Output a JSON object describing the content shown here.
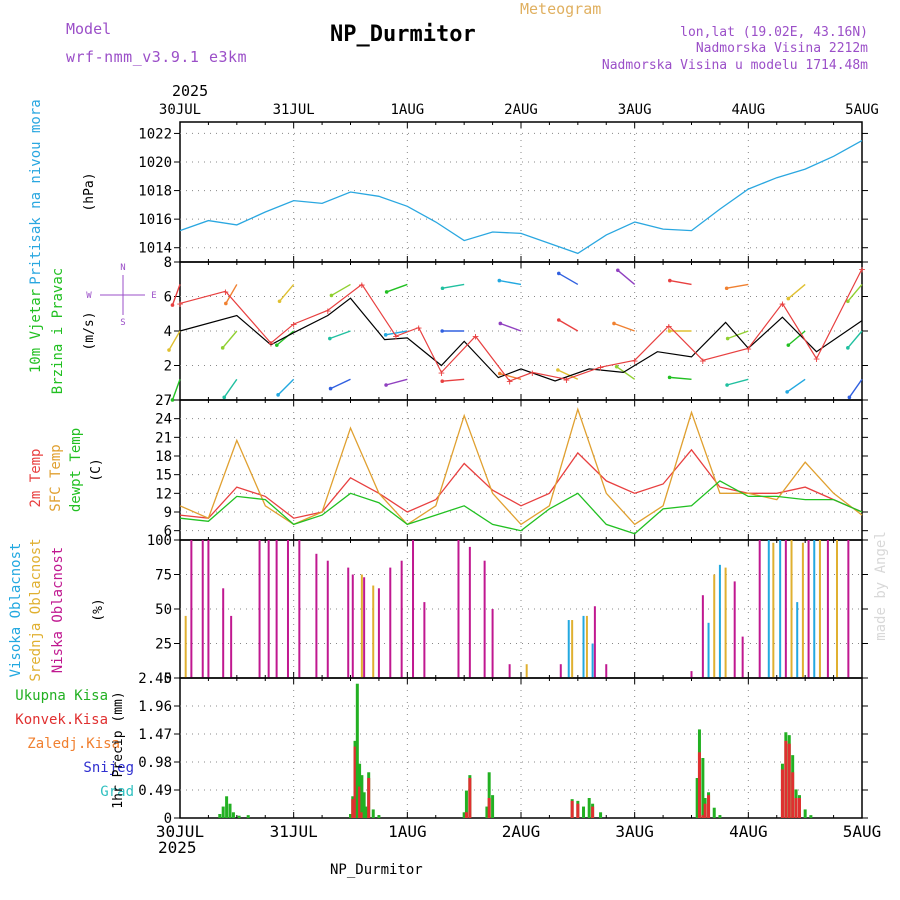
{
  "header": {
    "model_label": "Model",
    "model_name": "wrf-nmm_v3.9.1 e3km",
    "title": "NP_Durmitor",
    "meteogram_label": "Meteogram",
    "lonlat": "lon,lat (19.02E, 43.16N)",
    "elevation": "Nadmorska Visina 2212m",
    "model_elevation": "Nadmorska Visina u modelu 1714.48m",
    "year_top": "2025",
    "year_bottom": "2025",
    "footer_station": "NP_Durmitor",
    "watermark": "made by Angel"
  },
  "colors": {
    "pressure": "#2aa7e0",
    "temp2m": "#e84040",
    "sfc": "#e0a030",
    "dewpt": "#22c022",
    "cloud_high": "#22a8e0",
    "cloud_mid": "#e0b030",
    "cloud_low": "#c01890",
    "rain_total": "#22b022",
    "rain_conv": "#e03030",
    "rain_frozen": "#f08030",
    "snow": "#3030d0",
    "hail": "#30c0c0",
    "wind_speed": "#000000",
    "wind_gust": "#e84040",
    "grid": "#888888"
  },
  "chart_data": [
    {
      "id": "pressure",
      "type": "line",
      "ylabel_main": "Pritisak na nivou mora",
      "ylabel_unit": "(hPa)",
      "ylim": [
        1013,
        1022.8
      ],
      "yticks": [
        "1014",
        "1016",
        "1018",
        "1020",
        "1022"
      ],
      "xticks": [
        "30JUL",
        "31JUL",
        "1AUG",
        "2AUG",
        "3AUG",
        "4AUG",
        "5AUG"
      ],
      "x_days": [
        0,
        0.25,
        0.5,
        0.75,
        1,
        1.25,
        1.5,
        1.75,
        2,
        2.25,
        2.5,
        2.75,
        3,
        3.25,
        3.5,
        3.75,
        4,
        4.25,
        4.5,
        4.75,
        5,
        5.25,
        5.5,
        5.75,
        6
      ],
      "values": [
        1015.2,
        1015.9,
        1015.6,
        1016.5,
        1017.3,
        1017.1,
        1017.9,
        1017.6,
        1016.9,
        1015.8,
        1014.5,
        1015.1,
        1015.0,
        1014.3,
        1013.6,
        1014.9,
        1015.8,
        1015.3,
        1015.2,
        1016.7,
        1018.1,
        1018.9,
        1019.5,
        1020.4,
        1021.5
      ]
    },
    {
      "id": "wind",
      "type": "line",
      "ylabel_main": "10m Vjetar",
      "ylabel_sub": "Brzina i Pravac",
      "ylabel_unit": "(m/s)",
      "compass": {
        "n": "N",
        "s": "S",
        "e": "E",
        "w": "W"
      },
      "ylim": [
        0,
        8
      ],
      "yticks": [
        "2",
        "4",
        "6",
        "8"
      ],
      "series": [
        {
          "name": "speed",
          "x_days": [
            0,
            0.5,
            0.8,
            1.0,
            1.3,
            1.5,
            1.8,
            2.0,
            2.3,
            2.5,
            2.8,
            3.0,
            3.3,
            3.6,
            3.9,
            4.2,
            4.5,
            4.8,
            5.0,
            5.3,
            5.6,
            6.0
          ],
          "values": [
            4.0,
            4.9,
            3.2,
            3.9,
            4.9,
            5.9,
            3.5,
            3.6,
            2.0,
            3.4,
            1.3,
            1.8,
            1.1,
            1.8,
            1.6,
            2.8,
            2.5,
            4.5,
            3.0,
            4.8,
            2.8,
            4.6
          ]
        },
        {
          "name": "gust",
          "x_days": [
            0,
            0.4,
            0.8,
            1.0,
            1.3,
            1.6,
            1.9,
            2.1,
            2.3,
            2.6,
            2.9,
            3.1,
            3.4,
            3.7,
            4.0,
            4.3,
            4.6,
            5.0,
            5.3,
            5.6,
            6.0
          ],
          "values": [
            5.6,
            6.3,
            3.3,
            4.4,
            5.2,
            6.7,
            3.7,
            4.2,
            1.6,
            3.7,
            1.1,
            1.6,
            1.2,
            1.9,
            2.3,
            4.3,
            2.3,
            3.0,
            5.6,
            2.4,
            7.6
          ]
        }
      ],
      "arrow_rows": [
        {
          "level": 6.7,
          "x_days": [
            0,
            0.5,
            1.0,
            1.5,
            2.0,
            2.5,
            3.0,
            3.5,
            4.0,
            4.5,
            5.0,
            5.5,
            6.0
          ],
          "dir_deg": [
            200,
            210,
            220,
            240,
            250,
            260,
            280,
            300,
            310,
            280,
            260,
            230,
            220
          ]
        },
        {
          "level": 4.0,
          "x_days": [
            0,
            0.5,
            1.0,
            1.5,
            2.0,
            2.5,
            3.0,
            3.5,
            4.0,
            4.5,
            5.0,
            5.5,
            6.0
          ],
          "dir_deg": [
            210,
            220,
            230,
            250,
            260,
            270,
            290,
            300,
            290,
            270,
            250,
            230,
            220
          ]
        },
        {
          "level": 1.2,
          "x_days": [
            0,
            0.5,
            1.0,
            1.5,
            2.0,
            2.5,
            3.0,
            3.5,
            4.0,
            4.5,
            5.0,
            5.5,
            6.0
          ],
          "dir_deg": [
            200,
            215,
            225,
            245,
            255,
            265,
            285,
            295,
            305,
            275,
            255,
            235,
            215
          ]
        }
      ]
    },
    {
      "id": "temperature",
      "type": "line",
      "ylabel_t2m": "2m Temp",
      "ylabel_sfc": "SFC Temp",
      "ylabel_dew": "dewpt Temp",
      "ylabel_unit": "(C)",
      "ylim": [
        4.5,
        27
      ],
      "yticks": [
        "6",
        "9",
        "12",
        "15",
        "18",
        "21",
        "24",
        "27"
      ],
      "x_days": [
        0,
        0.25,
        0.5,
        0.75,
        1,
        1.25,
        1.5,
        1.75,
        2,
        2.25,
        2.5,
        2.75,
        3,
        3.25,
        3.5,
        3.75,
        4,
        4.25,
        4.5,
        4.75,
        5,
        5.25,
        5.5,
        5.75,
        6
      ],
      "series": [
        {
          "name": "2m Temp",
          "values": [
            8.5,
            8.0,
            13.0,
            11.5,
            8.0,
            9.0,
            14.5,
            12.0,
            9.0,
            11.0,
            16.8,
            12.5,
            10.0,
            12.0,
            18.5,
            14.0,
            12.0,
            13.5,
            19.0,
            13.0,
            12.0,
            12.0,
            13.0,
            11.0,
            9.0
          ]
        },
        {
          "name": "SFC Temp",
          "values": [
            10.0,
            8.0,
            20.5,
            10.0,
            7.0,
            9.0,
            22.5,
            12.0,
            7.0,
            10.0,
            24.5,
            12.0,
            7.0,
            10.0,
            25.5,
            12.0,
            7.0,
            10.0,
            25.0,
            12.0,
            12.0,
            11.0,
            17.0,
            12.0,
            8.5
          ]
        },
        {
          "name": "dewpt Temp",
          "values": [
            8.0,
            7.5,
            11.5,
            11.0,
            7.0,
            8.5,
            12.0,
            10.5,
            7.0,
            8.5,
            10.0,
            7.0,
            6.0,
            9.5,
            12.0,
            7.0,
            5.5,
            9.5,
            10.0,
            14.0,
            11.5,
            11.5,
            11.0,
            11.0,
            9.0
          ]
        }
      ]
    },
    {
      "id": "clouds",
      "type": "bar",
      "ylabel_high": "Visoka Oblacnost",
      "ylabel_mid": "Srednja Oblacnost",
      "ylabel_low": "Niska Oblacnost",
      "ylabel_unit": "(%)",
      "ylim": [
        0,
        100
      ],
      "yticks": [
        "0",
        "25",
        "50",
        "75",
        "100"
      ],
      "bars": [
        {
          "layer": "low",
          "x": 0.1,
          "v": 100
        },
        {
          "layer": "mid",
          "x": 0.05,
          "v": 45
        },
        {
          "layer": "low",
          "x": 0.2,
          "v": 100
        },
        {
          "layer": "low",
          "x": 0.25,
          "v": 100
        },
        {
          "layer": "low",
          "x": 0.38,
          "v": 65
        },
        {
          "layer": "low",
          "x": 0.45,
          "v": 45
        },
        {
          "layer": "low",
          "x": 0.7,
          "v": 100
        },
        {
          "layer": "low",
          "x": 0.78,
          "v": 100
        },
        {
          "layer": "low",
          "x": 0.85,
          "v": 100
        },
        {
          "layer": "low",
          "x": 0.95,
          "v": 100
        },
        {
          "layer": "low",
          "x": 1.05,
          "v": 100
        },
        {
          "layer": "low",
          "x": 1.2,
          "v": 90
        },
        {
          "layer": "low",
          "x": 1.3,
          "v": 85
        },
        {
          "layer": "low",
          "x": 1.48,
          "v": 80
        },
        {
          "layer": "low",
          "x": 1.52,
          "v": 75
        },
        {
          "layer": "mid",
          "x": 1.6,
          "v": 75
        },
        {
          "layer": "low",
          "x": 1.62,
          "v": 73
        },
        {
          "layer": "mid",
          "x": 1.7,
          "v": 67
        },
        {
          "layer": "low",
          "x": 1.75,
          "v": 65
        },
        {
          "layer": "low",
          "x": 1.85,
          "v": 80
        },
        {
          "layer": "low",
          "x": 1.95,
          "v": 85
        },
        {
          "layer": "low",
          "x": 2.05,
          "v": 100
        },
        {
          "layer": "low",
          "x": 2.15,
          "v": 55
        },
        {
          "layer": "low",
          "x": 2.45,
          "v": 100
        },
        {
          "layer": "low",
          "x": 2.55,
          "v": 95
        },
        {
          "layer": "low",
          "x": 2.68,
          "v": 85
        },
        {
          "layer": "low",
          "x": 2.75,
          "v": 50
        },
        {
          "layer": "low",
          "x": 2.9,
          "v": 10
        },
        {
          "layer": "mid",
          "x": 3.05,
          "v": 10
        },
        {
          "layer": "low",
          "x": 3.35,
          "v": 10
        },
        {
          "layer": "high",
          "x": 3.42,
          "v": 42
        },
        {
          "layer": "mid",
          "x": 3.45,
          "v": 42
        },
        {
          "layer": "high",
          "x": 3.55,
          "v": 45
        },
        {
          "layer": "mid",
          "x": 3.58,
          "v": 45
        },
        {
          "layer": "high",
          "x": 3.63,
          "v": 25
        },
        {
          "layer": "low",
          "x": 3.65,
          "v": 52
        },
        {
          "layer": "low",
          "x": 3.75,
          "v": 10
        },
        {
          "layer": "low",
          "x": 4.5,
          "v": 5
        },
        {
          "layer": "low",
          "x": 4.6,
          "v": 60
        },
        {
          "layer": "high",
          "x": 4.65,
          "v": 40
        },
        {
          "layer": "mid",
          "x": 4.7,
          "v": 75
        },
        {
          "layer": "high",
          "x": 4.75,
          "v": 82
        },
        {
          "layer": "mid",
          "x": 4.8,
          "v": 80
        },
        {
          "layer": "low",
          "x": 4.88,
          "v": 70
        },
        {
          "layer": "low",
          "x": 4.95,
          "v": 30
        },
        {
          "layer": "low",
          "x": 5.1,
          "v": 100
        },
        {
          "layer": "high",
          "x": 5.18,
          "v": 100
        },
        {
          "layer": "mid",
          "x": 5.22,
          "v": 98
        },
        {
          "layer": "high",
          "x": 5.28,
          "v": 100
        },
        {
          "layer": "low",
          "x": 5.33,
          "v": 100
        },
        {
          "layer": "mid",
          "x": 5.38,
          "v": 100
        },
        {
          "layer": "high",
          "x": 5.43,
          "v": 55
        },
        {
          "layer": "mid",
          "x": 5.48,
          "v": 98
        },
        {
          "layer": "low",
          "x": 5.53,
          "v": 100
        },
        {
          "layer": "high",
          "x": 5.58,
          "v": 100
        },
        {
          "layer": "mid",
          "x": 5.63,
          "v": 100
        },
        {
          "layer": "low",
          "x": 5.7,
          "v": 100
        },
        {
          "layer": "mid",
          "x": 5.78,
          "v": 100
        },
        {
          "layer": "low",
          "x": 5.88,
          "v": 100
        }
      ]
    },
    {
      "id": "precip",
      "type": "bar",
      "legend": [
        "Ukupna Kisa",
        "Konvek.Kisa",
        "Zaledj.Kisa",
        "Snijeg",
        "Grad"
      ],
      "ylabel_unit": "1hr Precip (mm)",
      "ylim": [
        0,
        2.45
      ],
      "yticks": [
        "0",
        "0.49",
        "0.98",
        "1.47",
        "1.96",
        "2.45"
      ],
      "x_days": [
        0.35,
        0.38,
        0.41,
        0.44,
        0.47,
        0.52,
        0.6,
        1.5,
        1.52,
        1.54,
        1.56,
        1.58,
        1.6,
        1.62,
        1.64,
        1.66,
        1.7,
        1.75,
        2.5,
        2.52,
        2.55,
        2.7,
        2.72,
        2.75,
        3.45,
        3.5,
        3.55,
        3.6,
        3.63,
        3.7,
        4.55,
        4.57,
        4.6,
        4.62,
        4.65,
        4.7,
        4.75,
        5.3,
        5.33,
        5.36,
        5.39,
        5.42,
        5.45,
        5.5,
        5.55
      ],
      "total": [
        0.07,
        0.2,
        0.38,
        0.25,
        0.1,
        0.04,
        0.05,
        0.07,
        0.38,
        1.35,
        2.35,
        0.95,
        0.75,
        0.45,
        0.2,
        0.8,
        0.15,
        0.05,
        0.1,
        0.48,
        0.75,
        0.2,
        0.8,
        0.4,
        0.33,
        0.3,
        0.2,
        0.35,
        0.25,
        0.1,
        0.7,
        1.55,
        1.05,
        0.35,
        0.45,
        0.18,
        0.05,
        0.95,
        1.5,
        1.45,
        1.1,
        0.5,
        0.4,
        0.15,
        0.05
      ],
      "convective": [
        0,
        0,
        0,
        0,
        0,
        0,
        0,
        0,
        0.33,
        1.25,
        0,
        0.55,
        0.1,
        0,
        0,
        0.7,
        0,
        0,
        0,
        0.1,
        0.7,
        0,
        0.35,
        0,
        0.3,
        0.25,
        0,
        0,
        0.2,
        0,
        0,
        1.15,
        0.05,
        0.25,
        0.4,
        0,
        0,
        0.85,
        1.35,
        1.3,
        0.8,
        0.35,
        0.35,
        0,
        0
      ]
    }
  ]
}
